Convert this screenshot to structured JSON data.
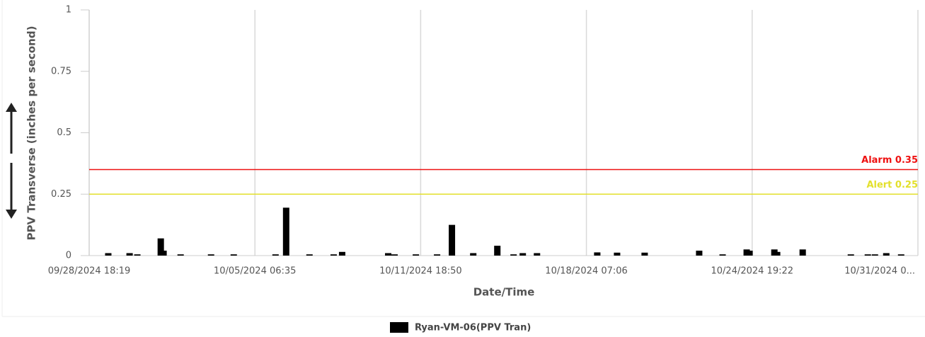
{
  "chart_data": {
    "type": "bar",
    "y_label": "PPV Transverse (inches per second)",
    "x_label": "Date/Time",
    "ylim": [
      0,
      1
    ],
    "yticks": [
      0,
      0.25,
      0.5,
      0.75,
      1
    ],
    "xlim": [
      "2024-09-28T18:19",
      "2024-10-31T07:39"
    ],
    "xticks": [
      {
        "value": "2024-09-28T18:19",
        "label": "09/28/2024 18:19"
      },
      {
        "value": "2024-10-05T06:35",
        "label": "10/05/2024 06:35"
      },
      {
        "value": "2024-10-11T18:50",
        "label": "10/11/2024 18:50"
      },
      {
        "value": "2024-10-18T07:06",
        "label": "10/18/2024 07:06"
      },
      {
        "value": "2024-10-24T19:22",
        "label": "10/24/2024 19:22"
      },
      {
        "value": "2024-10-31T07:39",
        "label": "10/31/2024 0..."
      }
    ],
    "grid": true,
    "x": [
      "2024-09-29T12:19",
      "2024-09-30T08:25",
      "2024-09-30T15:43",
      "2024-10-01T13:49",
      "2024-10-01T16:26",
      "2024-10-02T08:31",
      "2024-10-03T13:13",
      "2024-10-04T10:37",
      "2024-10-06T02:01",
      "2024-10-06T12:01",
      "2024-10-07T10:01",
      "2024-10-08T08:49",
      "2024-10-08T16:49",
      "2024-10-10T12:13",
      "2024-10-10T18:13",
      "2024-10-11T14:19",
      "2024-10-12T10:19",
      "2024-10-13T00:19",
      "2024-10-13T20:25",
      "2024-10-14T19:07",
      "2024-10-15T10:25",
      "2024-10-15T19:07",
      "2024-10-16T08:31",
      "2024-10-18T17:19",
      "2024-10-19T12:01",
      "2024-10-20T14:01",
      "2024-10-22T17:25",
      "2024-10-23T15:31",
      "2024-10-24T14:13",
      "2024-10-24T16:55",
      "2024-10-25T16:19",
      "2024-10-25T18:55",
      "2024-10-26T19:01",
      "2024-10-28T16:25",
      "2024-10-29T08:25",
      "2024-10-29T15:07",
      "2024-10-30T01:49",
      "2024-10-30T15:49"
    ],
    "series": [
      {
        "name": "Ryan-VM-06(PPV Tran)",
        "color": "#000000",
        "values": [
          0.01,
          0.01,
          0.005,
          0.07,
          0.02,
          0.005,
          0.005,
          0.005,
          0.005,
          0.195,
          0.005,
          0.005,
          0.015,
          0.01,
          0.005,
          0.005,
          0.005,
          0.125,
          0.01,
          0.04,
          0.005,
          0.01,
          0.01,
          0.013,
          0.012,
          0.012,
          0.02,
          0.005,
          0.025,
          0.02,
          0.025,
          0.015,
          0.025,
          0.005,
          0.005,
          0.005,
          0.01,
          0.005
        ]
      }
    ],
    "annotations": [
      {
        "label": "Alarm 0.35",
        "value": 0.35,
        "color": "#ee1111"
      },
      {
        "label": "Alert 0.25",
        "value": 0.25,
        "color": "#e3e02c"
      }
    ]
  }
}
